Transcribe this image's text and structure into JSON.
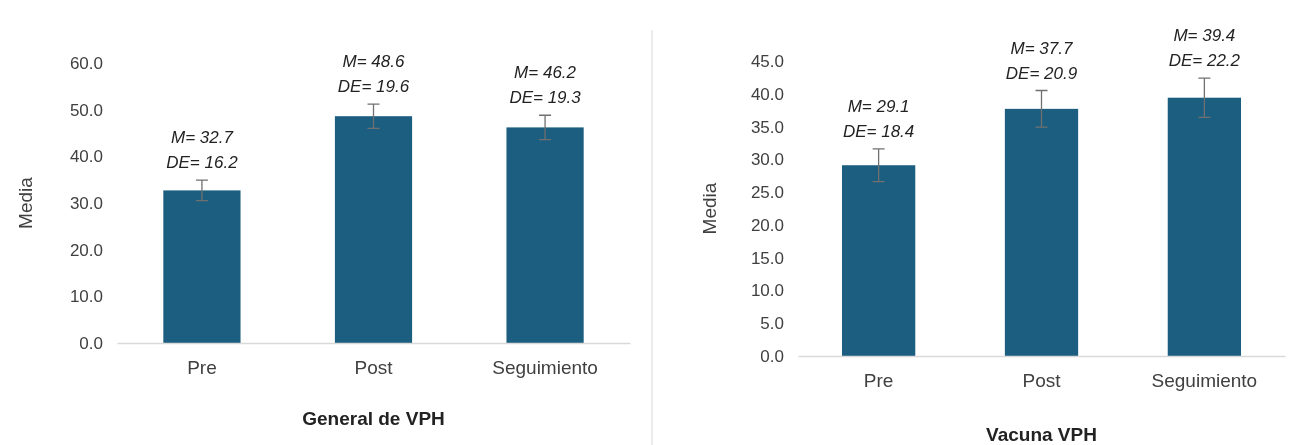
{
  "chart_data": [
    {
      "type": "bar",
      "xlabel": "General de VPH",
      "ylabel": "Media",
      "categories": [
        "Pre",
        "Post",
        "Seguimiento"
      ],
      "values": [
        32.7,
        48.6,
        46.2
      ],
      "errors": [
        2.2,
        2.6,
        2.6
      ],
      "color": "#1b5e80",
      "ylim": [
        0,
        60
      ],
      "yticks": [
        {
          "value": 0,
          "label": "0.0"
        },
        {
          "value": 10,
          "label": "10.0"
        },
        {
          "value": 20,
          "label": "20.0"
        },
        {
          "value": 30,
          "label": "30.0"
        },
        {
          "value": 40,
          "label": "40.0"
        },
        {
          "value": 50,
          "label": "50.0"
        },
        {
          "value": 60,
          "label": "60.0"
        }
      ],
      "grid": false,
      "annotations": [
        {
          "text": "M= 32.7\nDE= 16.2",
          "x": "Pre",
          "y": 34.9
        },
        {
          "text": "M= 48.6\nDE= 19.6",
          "x": "Post",
          "y": 51.2
        },
        {
          "text": "M= 46.2\nDE= 19.3",
          "x": "Seguimiento",
          "y": 48.8
        }
      ]
    },
    {
      "type": "bar",
      "xlabel": "Vacuna VPH",
      "ylabel": "Media",
      "categories": [
        "Pre",
        "Post",
        "Seguimiento"
      ],
      "values": [
        29.1,
        37.7,
        39.4
      ],
      "errors": [
        2.5,
        2.8,
        3.0
      ],
      "color": "#1b5e80",
      "ylim": [
        0,
        45
      ],
      "yticks": [
        {
          "value": 0,
          "label": "0.0"
        },
        {
          "value": 5,
          "label": "5.0"
        },
        {
          "value": 10,
          "label": "10.0"
        },
        {
          "value": 15,
          "label": "15.0"
        },
        {
          "value": 20,
          "label": "20.0"
        },
        {
          "value": 25,
          "label": "25.0"
        },
        {
          "value": 30,
          "label": "30.0"
        },
        {
          "value": 35,
          "label": "35.0"
        },
        {
          "value": 40,
          "label": "40.0"
        },
        {
          "value": 45,
          "label": "45.0"
        }
      ],
      "grid": false,
      "annotations": [
        {
          "text": "M= 29.1\nDE= 18.4",
          "x": "Pre",
          "y": 31.6
        },
        {
          "text": "M= 37.7\nDE= 20.9",
          "x": "Post",
          "y": 40.5
        },
        {
          "text": "M= 39.4\nDE= 22.2",
          "x": "Seguimiento",
          "y": 42.4
        }
      ]
    }
  ]
}
